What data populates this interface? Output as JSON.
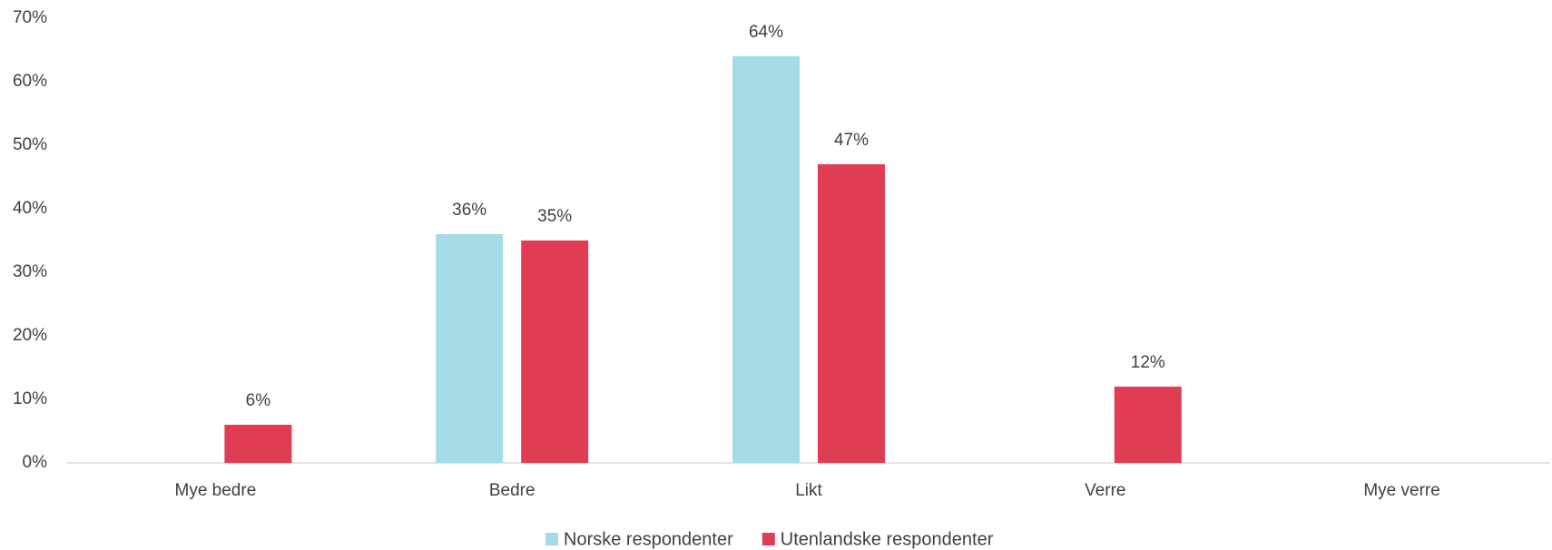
{
  "chart_data": {
    "type": "bar",
    "categories": [
      "Mye bedre",
      "Bedre",
      "Likt",
      "Verre",
      "Mye verre"
    ],
    "series": [
      {
        "name": "Norske respondenter",
        "color": "#a5dbe7",
        "values": [
          null,
          36,
          64,
          null,
          null
        ],
        "value_labels": [
          null,
          "36%",
          "64%",
          null,
          null
        ]
      },
      {
        "name": "Utenlandske respondenter",
        "color": "#e03c54",
        "values": [
          6,
          35,
          47,
          12,
          null
        ],
        "value_labels": [
          "6%",
          "35%",
          "47%",
          "12%",
          null
        ]
      }
    ],
    "ylim": [
      0,
      70
    ],
    "yticks": [
      {
        "value": 0,
        "label": "0%"
      },
      {
        "value": 10,
        "label": "10%"
      },
      {
        "value": 20,
        "label": "20%"
      },
      {
        "value": 30,
        "label": "30%"
      },
      {
        "value": 40,
        "label": "40%"
      },
      {
        "value": 50,
        "label": "50%"
      },
      {
        "value": 60,
        "label": "60%"
      },
      {
        "value": 70,
        "label": "70%"
      }
    ],
    "grid": false,
    "legend": "bottom"
  }
}
